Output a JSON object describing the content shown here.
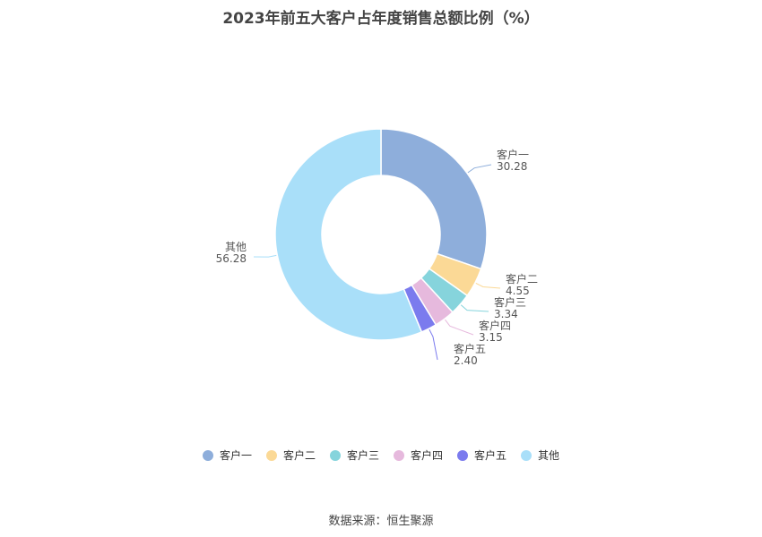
{
  "chart_data": {
    "type": "pie",
    "title": "2023年前五大客户占年度销售总额比例（%）",
    "categories": [
      "客户一",
      "客户二",
      "客户三",
      "客户四",
      "客户五",
      "其他"
    ],
    "values": [
      30.28,
      4.55,
      3.34,
      3.15,
      2.4,
      56.28
    ],
    "value_labels": [
      "30.28",
      "4.55",
      "3.34",
      "3.15",
      "2.40",
      "56.28"
    ],
    "colors": [
      "#8eaedb",
      "#fbd996",
      "#86d4dc",
      "#e6b9dd",
      "#7b7bee",
      "#a9dff9"
    ],
    "donut": true,
    "legend_position": "bottom"
  },
  "source": "数据来源：恒生聚源"
}
